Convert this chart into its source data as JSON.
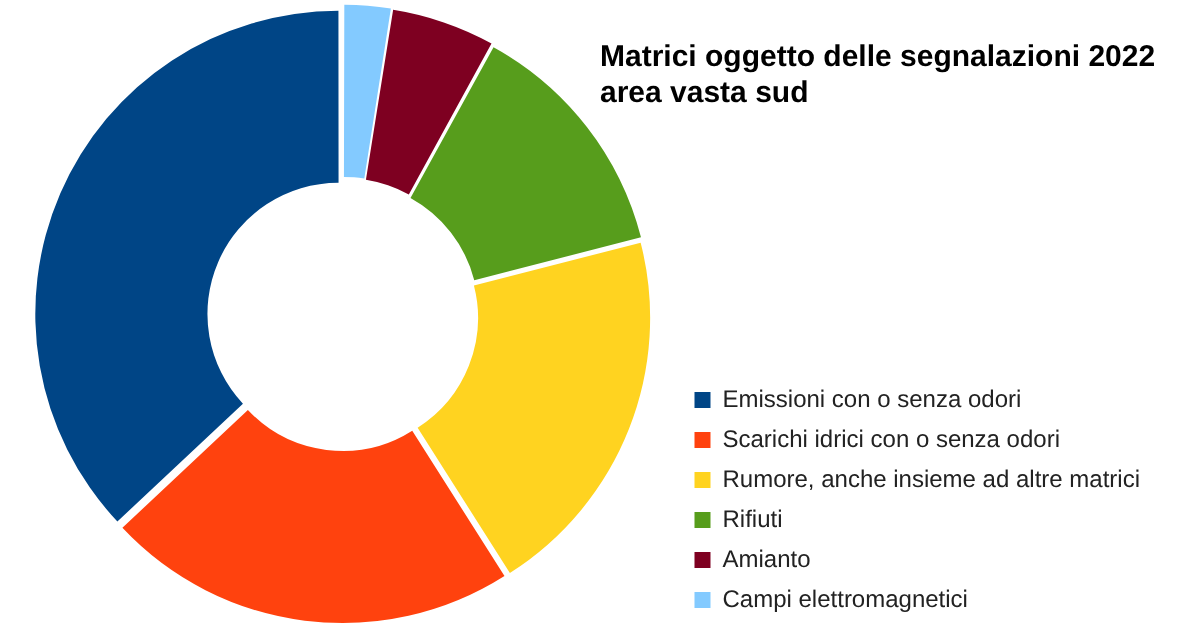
{
  "chart_data": {
    "type": "donut",
    "title": "Matrici oggetto delle segnalazioni 2022\narea vasta sud",
    "categories": [
      "Emissioni con o senza odori",
      "Scarichi idrici con o senza odori",
      "Rumore, anche insieme ad altre matrici",
      "Rifiuti",
      "Amianto",
      "Campi elettromagnetici"
    ],
    "values": [
      37,
      22,
      20,
      13,
      5.5,
      2.5
    ],
    "colors": [
      "#004586",
      "#ff420e",
      "#ffd320",
      "#579d1c",
      "#7e0021",
      "#83caff"
    ],
    "legend": "right"
  }
}
